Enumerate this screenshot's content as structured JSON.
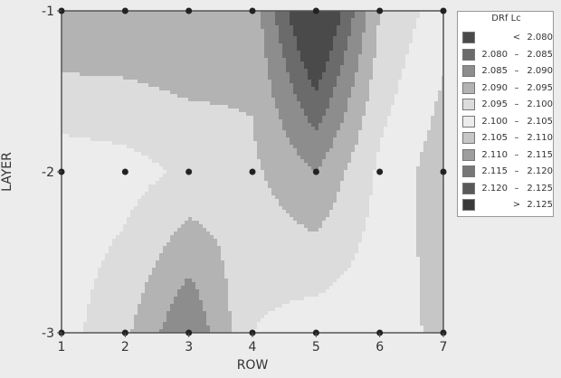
{
  "chart_data": {
    "type": "heatmap",
    "title": "",
    "xlabel": "ROW",
    "ylabel": "LAYER",
    "x_ticks": [
      "1",
      "2",
      "3",
      "4",
      "5",
      "6",
      "7"
    ],
    "y_ticks": [
      "-1",
      "-2",
      "-3"
    ],
    "xlim": [
      1,
      7
    ],
    "ylim": [
      -3,
      -1
    ],
    "grid": false,
    "legend_placement": "top-right",
    "legend_title": "DRf Lc",
    "x": [
      1,
      2,
      3,
      4,
      5,
      6,
      7
    ],
    "y": [
      -1,
      -2,
      -3
    ],
    "z": [
      [
        2.09,
        2.09,
        2.09,
        2.093,
        2.07,
        2.095,
        2.103
      ],
      [
        2.103,
        2.102,
        2.099,
        2.096,
        2.09,
        2.101,
        2.108
      ],
      [
        2.102,
        2.096,
        2.085,
        2.1,
        2.103,
        2.103,
        2.106
      ]
    ],
    "levels": [
      {
        "lo": "",
        "op": "<",
        "hi": "2.080",
        "color": "#4a4a4a"
      },
      {
        "lo": "2.080",
        "op": "–",
        "hi": "2.085",
        "color": "#6b6b6b"
      },
      {
        "lo": "2.085",
        "op": "–",
        "hi": "2.090",
        "color": "#8d8d8d"
      },
      {
        "lo": "2.090",
        "op": "–",
        "hi": "2.095",
        "color": "#b3b3b3"
      },
      {
        "lo": "2.095",
        "op": "–",
        "hi": "2.100",
        "color": "#dcdcdc"
      },
      {
        "lo": "2.100",
        "op": "–",
        "hi": "2.105",
        "color": "#ececec"
      },
      {
        "lo": "2.105",
        "op": "–",
        "hi": "2.110",
        "color": "#c6c6c6"
      },
      {
        "lo": "2.110",
        "op": "–",
        "hi": "2.115",
        "color": "#9e9e9e"
      },
      {
        "lo": "2.115",
        "op": "–",
        "hi": "2.120",
        "color": "#777777"
      },
      {
        "lo": "2.120",
        "op": "–",
        "hi": "2.125",
        "color": "#595959"
      },
      {
        "lo": "",
        "op": ">",
        "hi": "2.125",
        "color": "#3a3a3a"
      }
    ],
    "points_x": [
      1,
      2,
      3,
      4,
      5,
      6,
      7
    ],
    "points_y": [
      -1,
      -2,
      -3
    ]
  },
  "colors": {
    "background": "#ececec",
    "axis": "#555555",
    "point": "#222222"
  }
}
